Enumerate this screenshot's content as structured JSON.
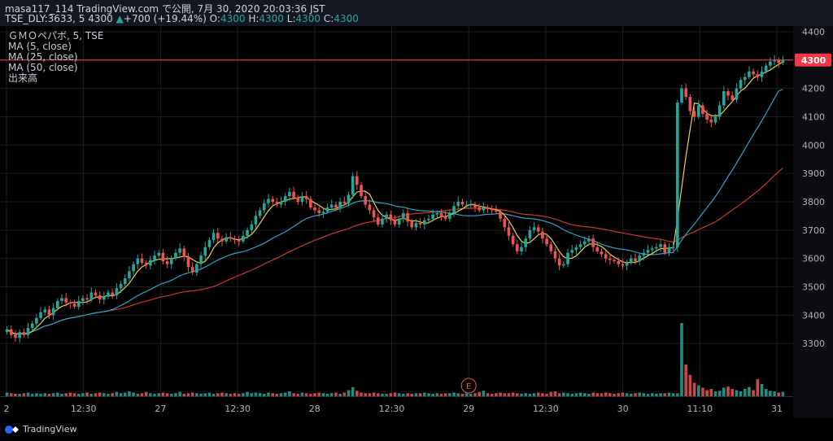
{
  "header": {
    "line1": "masa117_114 TradingView.com で公開, 7月 30, 2020 20:03:36 JST",
    "symbol": "TSE_DLY:3633, 5",
    "last": "4300",
    "change_arrow": "▲",
    "change": "+700 (+19.44%)",
    "o_label": "O:",
    "o_value": "4300",
    "h_label": "H:",
    "h_value": "4300",
    "l_label": "L:",
    "l_value": "4300",
    "c_label": "C:",
    "c_value": "4300"
  },
  "legend": {
    "symbol": "ＧＭＯペパボ, 5, TSE",
    "ma5": "MA (5, close)",
    "ma25": "MA (25, close)",
    "ma50": "MA (50, close)",
    "volume": "出来高"
  },
  "footer": {
    "brand": "TradingView"
  },
  "colors": {
    "up": "#26a69a",
    "down": "#ef5350",
    "ma5": "#e8d44d",
    "ma25": "#2ba5c9",
    "ma50": "#d0352e",
    "price_line": "#ff4a4a",
    "price_tag": "#f23645",
    "grid": "#1b1e24",
    "axis_text": "#b2b5be"
  },
  "chart_data": {
    "type": "candlestick",
    "ylim": [
      3200,
      4420
    ],
    "y_ticks": [
      3300,
      3400,
      3500,
      3600,
      3700,
      3800,
      3900,
      4000,
      4100,
      4200,
      4300,
      4400
    ],
    "last_price": 4300,
    "last_price_label": "4300",
    "x_ticks": [
      "2",
      "12:30",
      "27",
      "12:30",
      "28",
      "12:30",
      "29",
      "12:30",
      "30",
      "11:10",
      "31"
    ],
    "earnings_marker": "E",
    "close": [
      3350,
      3330,
      3320,
      3340,
      3330,
      3355,
      3370,
      3390,
      3410,
      3420,
      3400,
      3425,
      3450,
      3460,
      3445,
      3440,
      3430,
      3450,
      3460,
      3455,
      3480,
      3470,
      3455,
      3465,
      3480,
      3470,
      3495,
      3510,
      3530,
      3555,
      3580,
      3600,
      3585,
      3575,
      3595,
      3610,
      3620,
      3590,
      3580,
      3600,
      3620,
      3635,
      3605,
      3570,
      3550,
      3580,
      3610,
      3640,
      3665,
      3690,
      3670,
      3660,
      3675,
      3670,
      3665,
      3660,
      3680,
      3700,
      3720,
      3750,
      3770,
      3795,
      3810,
      3800,
      3790,
      3800,
      3820,
      3835,
      3815,
      3800,
      3820,
      3810,
      3780,
      3770,
      3760,
      3765,
      3780,
      3790,
      3780,
      3800,
      3795,
      3825,
      3890,
      3860,
      3820,
      3790,
      3770,
      3745,
      3720,
      3740,
      3755,
      3735,
      3720,
      3740,
      3760,
      3730,
      3710,
      3725,
      3720,
      3735,
      3740,
      3755,
      3760,
      3750,
      3740,
      3760,
      3785,
      3800,
      3790,
      3790,
      3790,
      3780,
      3770,
      3780,
      3775,
      3770,
      3765,
      3740,
      3710,
      3680,
      3650,
      3625,
      3640,
      3670,
      3700,
      3710,
      3695,
      3670,
      3650,
      3625,
      3600,
      3575,
      3580,
      3620,
      3630,
      3640,
      3650,
      3660,
      3670,
      3640,
      3625,
      3615,
      3600,
      3595,
      3590,
      3580,
      3575,
      3585,
      3600,
      3590,
      3610,
      3620,
      3630,
      3635,
      3640,
      3650,
      3620,
      3640,
      3640,
      4150,
      4200,
      4170,
      4120,
      4100,
      4140,
      4110,
      4090,
      4080,
      4100,
      4140,
      4190,
      4175,
      4160,
      4200,
      4230,
      4240,
      4260,
      4250,
      4240,
      4260,
      4280,
      4295,
      4300,
      4290,
      4300
    ],
    "volume": [
      6,
      5,
      4,
      4,
      5,
      6,
      4,
      5,
      4,
      5,
      4,
      5,
      6,
      4,
      5,
      6,
      5,
      4,
      5,
      6,
      4,
      5,
      6,
      5,
      4,
      5,
      7,
      5,
      6,
      8,
      6,
      4,
      5,
      7,
      5,
      4,
      5,
      6,
      5,
      4,
      5,
      7,
      4,
      5,
      6,
      5,
      4,
      5,
      6,
      4,
      5,
      6,
      5,
      4,
      5,
      4,
      5,
      7,
      5,
      6,
      5,
      4,
      6,
      5,
      4,
      5,
      6,
      8,
      5,
      4,
      6,
      5,
      4,
      5,
      6,
      5,
      4,
      5,
      6,
      4,
      6,
      10,
      15,
      9,
      6,
      5,
      5,
      6,
      5,
      4,
      4,
      5,
      6,
      5,
      4,
      5,
      4,
      5,
      5,
      6,
      5,
      4,
      5,
      4,
      5,
      5,
      6,
      5,
      4,
      5,
      4,
      5,
      7,
      9,
      5,
      4,
      5,
      6,
      5,
      5,
      6,
      5,
      4,
      5,
      4,
      5,
      6,
      5,
      4,
      7,
      8,
      5,
      6,
      5,
      4,
      5,
      6,
      5,
      4,
      6,
      5,
      5,
      6,
      5,
      4,
      5,
      6,
      5,
      4,
      5,
      6,
      5,
      4,
      5,
      4,
      5,
      5,
      6,
      5,
      5,
      120,
      52,
      35,
      22,
      18,
      14,
      10,
      12,
      8,
      9,
      14,
      16,
      12,
      10,
      8,
      12,
      15,
      10,
      28,
      20,
      12,
      9,
      8,
      6,
      7
    ]
  }
}
